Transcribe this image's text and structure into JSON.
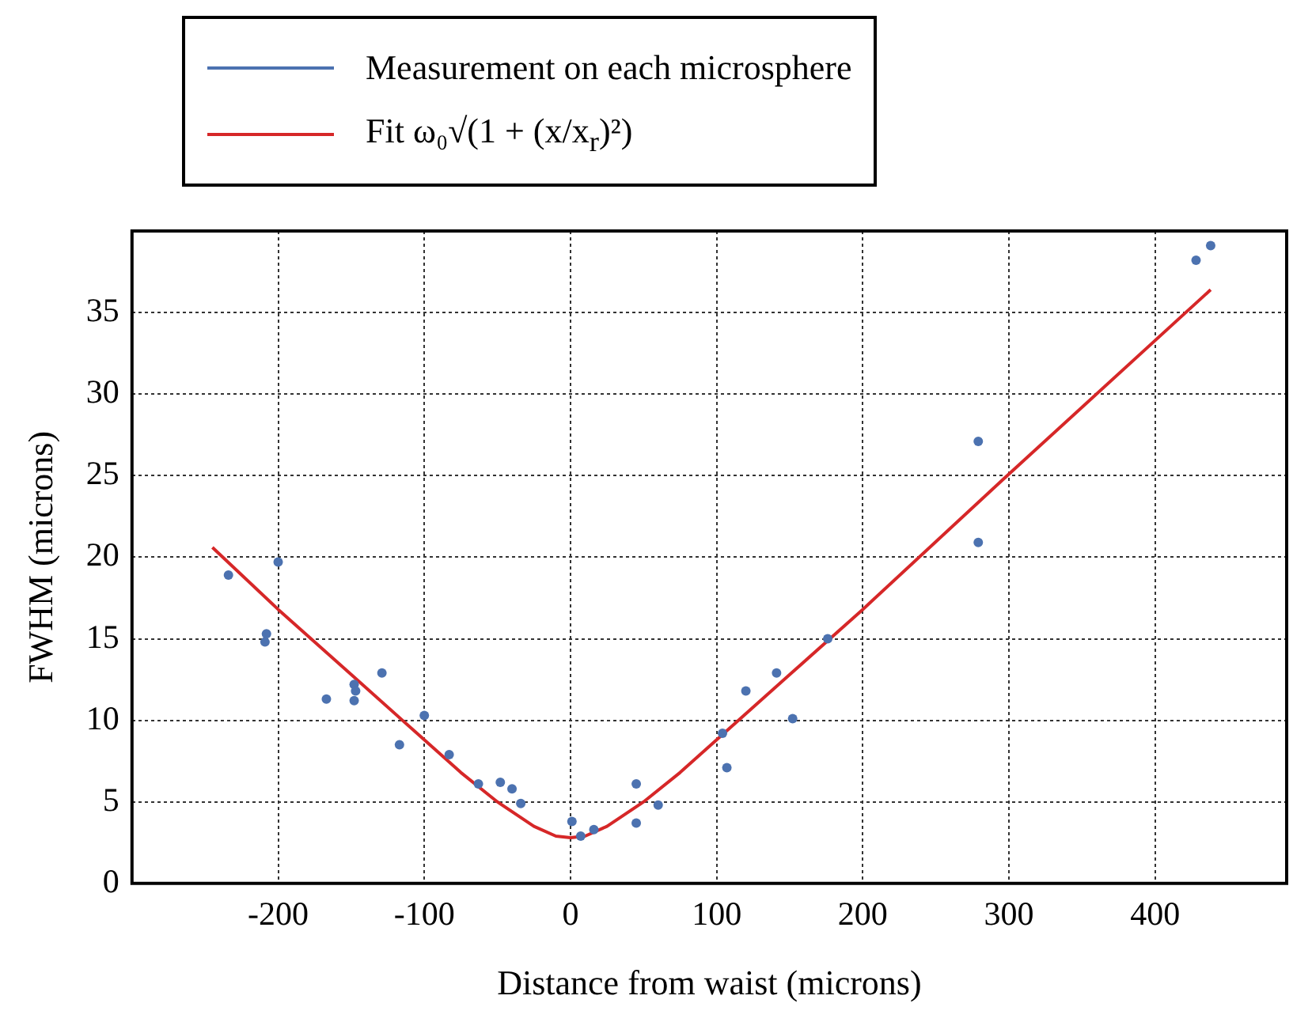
{
  "chart_data": {
    "type": "scatter",
    "xlabel": "Distance from waist (microns)",
    "ylabel": "FWHM (microns)",
    "xlim": [
      -300,
      490
    ],
    "ylim": [
      0,
      40
    ],
    "xticks": [
      -200,
      -100,
      0,
      100,
      200,
      300,
      400
    ],
    "yticks": [
      0,
      5,
      10,
      15,
      20,
      25,
      30,
      35
    ],
    "grid": true,
    "legend": "top",
    "series": [
      {
        "name": "Measurement on each microsphere",
        "type": "scatter",
        "marker": "circle",
        "color": "#4c72b0",
        "x": [
          -234,
          -200,
          -208,
          -209,
          -167,
          -148,
          -147,
          -148,
          -129,
          -117,
          -100,
          -83,
          -63,
          -48,
          -40,
          -34,
          1,
          7,
          16,
          45,
          45,
          60,
          104,
          107,
          120,
          141,
          152,
          176,
          279,
          279,
          428,
          438
        ],
        "values": [
          18.9,
          19.7,
          15.3,
          14.8,
          11.3,
          12.2,
          11.8,
          11.2,
          12.9,
          8.5,
          10.3,
          7.9,
          6.1,
          6.2,
          5.8,
          4.9,
          3.8,
          2.9,
          3.3,
          6.1,
          3.7,
          4.8,
          9.2,
          7.1,
          11.8,
          12.9,
          10.1,
          15.0,
          27.1,
          20.9,
          38.2,
          39.1
        ]
      },
      {
        "name": "Fit ω₀√(1 + (x/x$_{r}$)²)",
        "type": "line",
        "marker": "none",
        "color": "#d62728",
        "x": [
          -245,
          -200,
          -150,
          -100,
          -75,
          -50,
          -25,
          -10,
          0,
          10,
          25,
          50,
          75,
          100,
          150,
          200,
          300,
          438
        ],
        "values": [
          20.6,
          16.8,
          12.8,
          8.8,
          6.8,
          5.0,
          3.5,
          2.9,
          2.8,
          2.9,
          3.5,
          5.0,
          6.8,
          8.8,
          12.8,
          16.8,
          25.1,
          36.4
        ]
      }
    ]
  }
}
